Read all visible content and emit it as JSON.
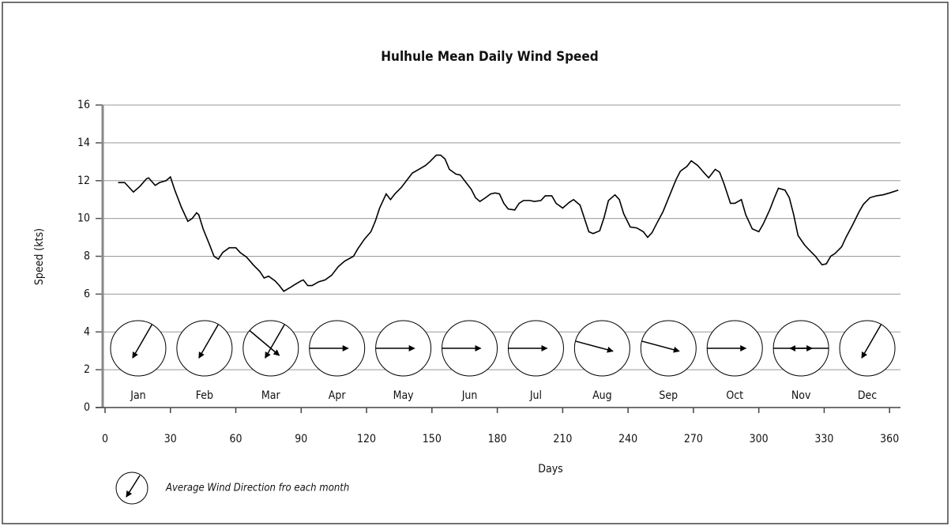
{
  "chart_data": {
    "type": "line",
    "title": "Hulhule Mean Daily Wind Speed",
    "xlabel": "Days",
    "ylabel": "Speed (kts)",
    "xlim": [
      0,
      365
    ],
    "xticks": [
      0,
      30,
      60,
      90,
      120,
      150,
      180,
      210,
      240,
      270,
      300,
      330,
      360
    ],
    "ylim": [
      0,
      16
    ],
    "yticks": [
      0,
      2,
      4,
      6,
      8,
      10,
      12,
      14,
      16
    ],
    "grid": true,
    "series": [
      {
        "name": "Mean daily wind speed",
        "color": "#000000",
        "x": [
          6,
          9,
          11,
          13,
          16,
          19,
          20,
          23,
          25,
          28,
          30,
          32,
          35,
          38,
          40,
          42,
          43,
          45,
          48,
          50,
          52,
          54,
          57,
          60,
          62,
          65,
          68,
          71,
          73,
          75,
          78,
          80,
          82,
          85,
          87,
          90,
          91,
          93,
          95,
          98,
          101,
          104,
          107,
          110,
          114,
          116,
          119,
          122,
          124,
          126,
          129,
          131,
          133,
          136,
          139,
          141,
          144,
          147,
          149,
          152,
          154,
          156,
          158,
          161,
          163,
          165,
          168,
          170,
          172,
          174,
          177,
          179,
          181,
          183,
          185,
          188,
          190,
          192,
          195,
          197,
          200,
          202,
          205,
          207,
          210,
          213,
          215,
          218,
          220,
          222,
          224,
          227,
          229,
          231,
          234,
          236,
          238,
          241,
          244,
          247,
          249,
          251,
          253,
          256,
          259,
          262,
          264,
          267,
          269,
          272,
          275,
          277,
          280,
          282,
          284,
          287,
          289,
          292,
          294,
          297,
          300,
          302,
          305,
          307,
          309,
          312,
          314,
          316,
          318,
          321,
          323,
          326,
          329,
          331,
          333,
          335,
          338,
          340,
          343,
          346,
          348,
          351,
          354,
          357,
          360,
          364
        ],
        "values": [
          11.9,
          11.9,
          11.65,
          11.4,
          11.7,
          12.1,
          12.15,
          11.75,
          11.9,
          12.0,
          12.2,
          11.5,
          10.6,
          9.85,
          10.0,
          10.3,
          10.2,
          9.45,
          8.6,
          8.0,
          7.85,
          8.2,
          8.45,
          8.45,
          8.2,
          7.95,
          7.55,
          7.2,
          6.85,
          6.95,
          6.7,
          6.45,
          6.15,
          6.35,
          6.5,
          6.7,
          6.75,
          6.45,
          6.45,
          6.65,
          6.75,
          7.0,
          7.45,
          7.75,
          8.0,
          8.4,
          8.9,
          9.3,
          9.85,
          10.55,
          11.3,
          11.0,
          11.3,
          11.65,
          12.1,
          12.4,
          12.6,
          12.8,
          13.0,
          13.35,
          13.35,
          13.15,
          12.6,
          12.35,
          12.3,
          12.0,
          11.55,
          11.1,
          10.9,
          11.05,
          11.3,
          11.35,
          11.3,
          10.8,
          10.5,
          10.45,
          10.8,
          10.95,
          10.95,
          10.9,
          10.95,
          11.2,
          11.2,
          10.8,
          10.55,
          10.85,
          11.0,
          10.7,
          10.0,
          9.3,
          9.2,
          9.35,
          10.05,
          10.95,
          11.25,
          11.0,
          10.25,
          9.55,
          9.5,
          9.3,
          9.0,
          9.25,
          9.7,
          10.35,
          11.2,
          12.05,
          12.5,
          12.75,
          13.05,
          12.8,
          12.4,
          12.15,
          12.6,
          12.45,
          11.85,
          10.8,
          10.8,
          11.0,
          10.2,
          9.45,
          9.3,
          9.7,
          10.45,
          11.05,
          11.6,
          11.5,
          11.1,
          10.2,
          9.1,
          8.6,
          8.35,
          8.0,
          7.55,
          7.6,
          8.0,
          8.15,
          8.5,
          9.0,
          9.65,
          10.35,
          10.75,
          11.1,
          11.2,
          11.25,
          11.35,
          11.5
        ]
      }
    ],
    "months": [
      "Jan",
      "Feb",
      "Mar",
      "Apr",
      "May",
      "Jun",
      "Jul",
      "Aug",
      "Sep",
      "Oct",
      "Nov",
      "Dec"
    ],
    "wind_headings": [
      [
        210
      ],
      [
        210
      ],
      [
        130,
        210
      ],
      [
        90
      ],
      [
        90
      ],
      [
        90
      ],
      [
        90
      ],
      [
        105
      ],
      [
        105
      ],
      [
        90
      ],
      [
        90,
        270
      ],
      [
        210
      ]
    ],
    "legend_text": "Average Wind Direction  fro each month"
  }
}
